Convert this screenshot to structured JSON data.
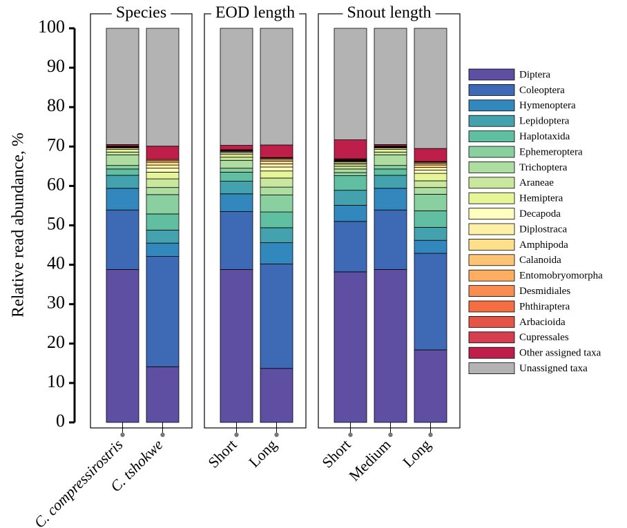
{
  "chart_data": {
    "type": "bar",
    "stacked": true,
    "y_label": "Relative read abundance, %",
    "panels": [
      {
        "title": "Species",
        "categories": [
          "C. compressirostris",
          "C. tshokwe"
        ]
      },
      {
        "title": "EOD length",
        "categories": [
          "Short",
          "Long"
        ]
      },
      {
        "title": "Snout length",
        "categories": [
          "Short",
          "Medium",
          "Long"
        ]
      }
    ],
    "ylim": [
      0,
      100
    ],
    "yticks": [
      0,
      10,
      20,
      30,
      40,
      50,
      60,
      70,
      80,
      90,
      100
    ],
    "series": [
      {
        "name": "Diptera",
        "color": "#5e4fa2",
        "values": [
          38.8,
          14.1,
          38.8,
          13.7,
          38.2,
          38.8,
          18.4
        ]
      },
      {
        "name": "Coleoptera",
        "color": "#3e69b4",
        "values": [
          15.1,
          28.0,
          14.7,
          26.5,
          12.8,
          15.1,
          24.5
        ]
      },
      {
        "name": "Hymenoptera",
        "color": "#3288bd",
        "values": [
          5.5,
          3.4,
          4.5,
          5.4,
          4.1,
          5.5,
          3.3
        ]
      },
      {
        "name": "Lepidoptera",
        "color": "#43a2ad",
        "values": [
          3.3,
          3.3,
          3.2,
          3.8,
          3.8,
          3.3,
          3.3
        ]
      },
      {
        "name": "Haplotaxida",
        "color": "#5fbfa0",
        "values": [
          1.6,
          4.1,
          2.3,
          4.0,
          3.7,
          1.6,
          4.2
        ]
      },
      {
        "name": "Ephemeroptera",
        "color": "#8acfa0",
        "values": [
          0.9,
          4.9,
          1.0,
          4.3,
          0.8,
          0.9,
          4.2
        ]
      },
      {
        "name": "Trichoptera",
        "color": "#addda1",
        "values": [
          2.7,
          1.8,
          2.0,
          2.0,
          0.9,
          2.7,
          1.7
        ]
      },
      {
        "name": "Araneae",
        "color": "#cae79e",
        "values": [
          0.7,
          2.2,
          0.8,
          2.3,
          0.7,
          0.7,
          1.7
        ]
      },
      {
        "name": "Hemiptera",
        "color": "#e6f598",
        "values": [
          0.7,
          1.7,
          0.7,
          1.8,
          0.5,
          0.7,
          1.9
        ]
      },
      {
        "name": "Decapoda",
        "color": "#ffffbf",
        "values": [
          0.3,
          1.0,
          0.4,
          1.0,
          0.3,
          0.3,
          0.8
        ]
      },
      {
        "name": "Diplostraca",
        "color": "#fff0a8",
        "values": [
          0.2,
          0.8,
          0.3,
          0.8,
          0.3,
          0.2,
          0.7
        ]
      },
      {
        "name": "Amphipoda",
        "color": "#fee08b",
        "values": [
          0.1,
          0.7,
          0.1,
          0.7,
          0.2,
          0.1,
          0.6
        ]
      },
      {
        "name": "Calanoida",
        "color": "#fdc475",
        "values": [
          0.1,
          0.4,
          0.1,
          0.4,
          0.1,
          0.1,
          0.4
        ]
      },
      {
        "name": "Entomobryomorpha",
        "color": "#fdae61",
        "values": [
          0.1,
          0.3,
          0.1,
          0.3,
          0.1,
          0.1,
          0.3
        ]
      },
      {
        "name": "Desmidiales",
        "color": "#f88d52",
        "values": [
          0,
          0,
          0,
          0.1,
          0.1,
          0,
          0.1
        ]
      },
      {
        "name": "Phthiraptera",
        "color": "#f46d43",
        "values": [
          0,
          0,
          0,
          0,
          0,
          0,
          0
        ]
      },
      {
        "name": "Arbacioida",
        "color": "#e45548",
        "values": [
          0,
          0,
          0,
          0,
          0.1,
          0,
          0
        ]
      },
      {
        "name": "Cupressales",
        "color": "#d53e4f",
        "values": [
          0,
          0,
          0.2,
          0.1,
          0.2,
          0,
          0.1
        ]
      },
      {
        "name": "Other assigned taxa",
        "color": "#be1e4a",
        "values": [
          0.4,
          3.4,
          1.1,
          3.2,
          4.8,
          0.4,
          3.3
        ]
      },
      {
        "name": "Unassigned taxa",
        "color": "#b3b3b3",
        "values": [
          29.5,
          29.9,
          29.7,
          29.6,
          28.3,
          29.5,
          30.5
        ]
      }
    ]
  }
}
